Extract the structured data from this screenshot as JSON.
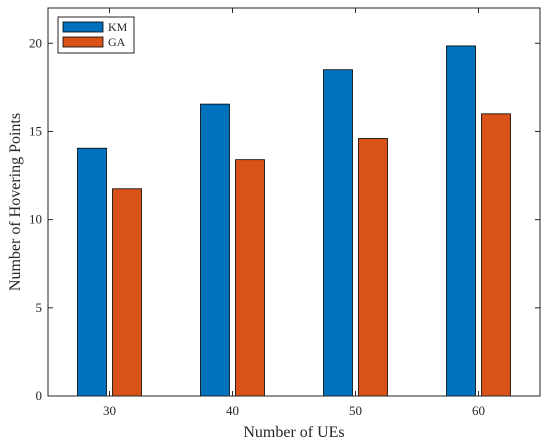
{
  "chart_data": {
    "type": "bar",
    "categories": [
      "30",
      "40",
      "50",
      "60"
    ],
    "series": [
      {
        "name": "KM",
        "values": [
          14.05,
          16.55,
          18.5,
          19.85
        ],
        "color": "#0072BD"
      },
      {
        "name": "GA",
        "values": [
          11.75,
          13.4,
          14.6,
          16.0
        ],
        "color": "#D95319"
      }
    ],
    "title": "",
    "xlabel": "Number of UEs",
    "ylabel": "Number of Hovering Points",
    "ylim": [
      0,
      22
    ],
    "yticks": [
      0,
      5,
      10,
      15,
      20
    ],
    "grid": false,
    "legend": "top-left"
  }
}
